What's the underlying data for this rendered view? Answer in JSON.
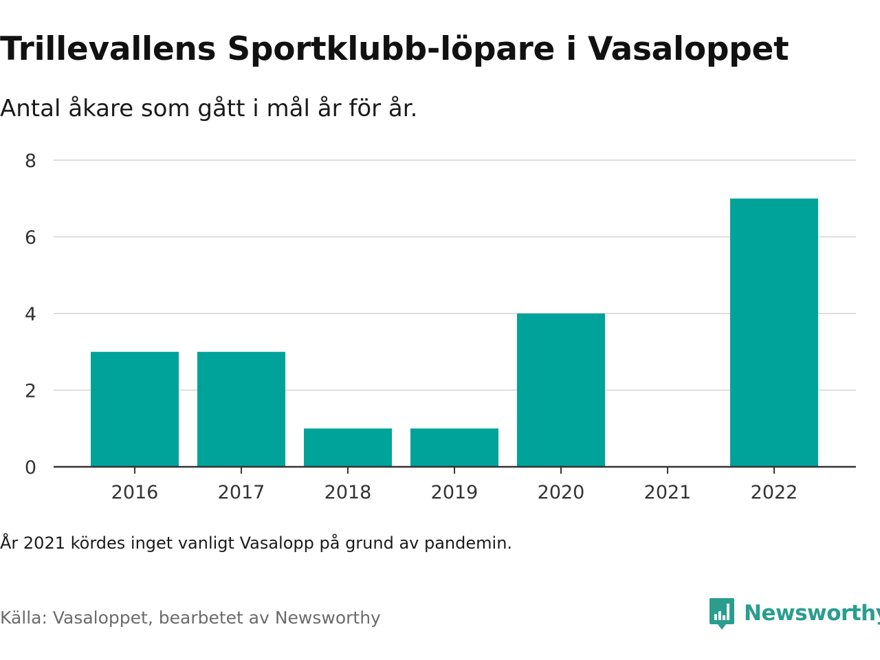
{
  "header": {
    "title": "Trillevallens Sportklubb-löpare i Vasaloppet",
    "subtitle": "Antal åkare som gått i mål år för år."
  },
  "footer": {
    "note": "År 2021 kördes inget vanligt Vasalopp på grund av pandemin.",
    "source": "Källa: Vasaloppet, bearbetet av Newsworthy",
    "logo_text": "Newsworthy",
    "logo_icon": "newsworthy-bar-chart-icon"
  },
  "colors": {
    "bar": "#00A39A",
    "grid": "#DDDDDD",
    "axis": "#333333",
    "logo": "#2A9D8F"
  },
  "chart_data": {
    "type": "bar",
    "categories": [
      "2016",
      "2017",
      "2018",
      "2019",
      "2020",
      "2021",
      "2022"
    ],
    "values": [
      3,
      3,
      1,
      1,
      4,
      0,
      7
    ],
    "ylim": [
      0,
      8
    ],
    "yticks": [
      0,
      2,
      4,
      6,
      8
    ],
    "grid": true,
    "legend": "none",
    "title": "",
    "xlabel": "",
    "ylabel": ""
  }
}
